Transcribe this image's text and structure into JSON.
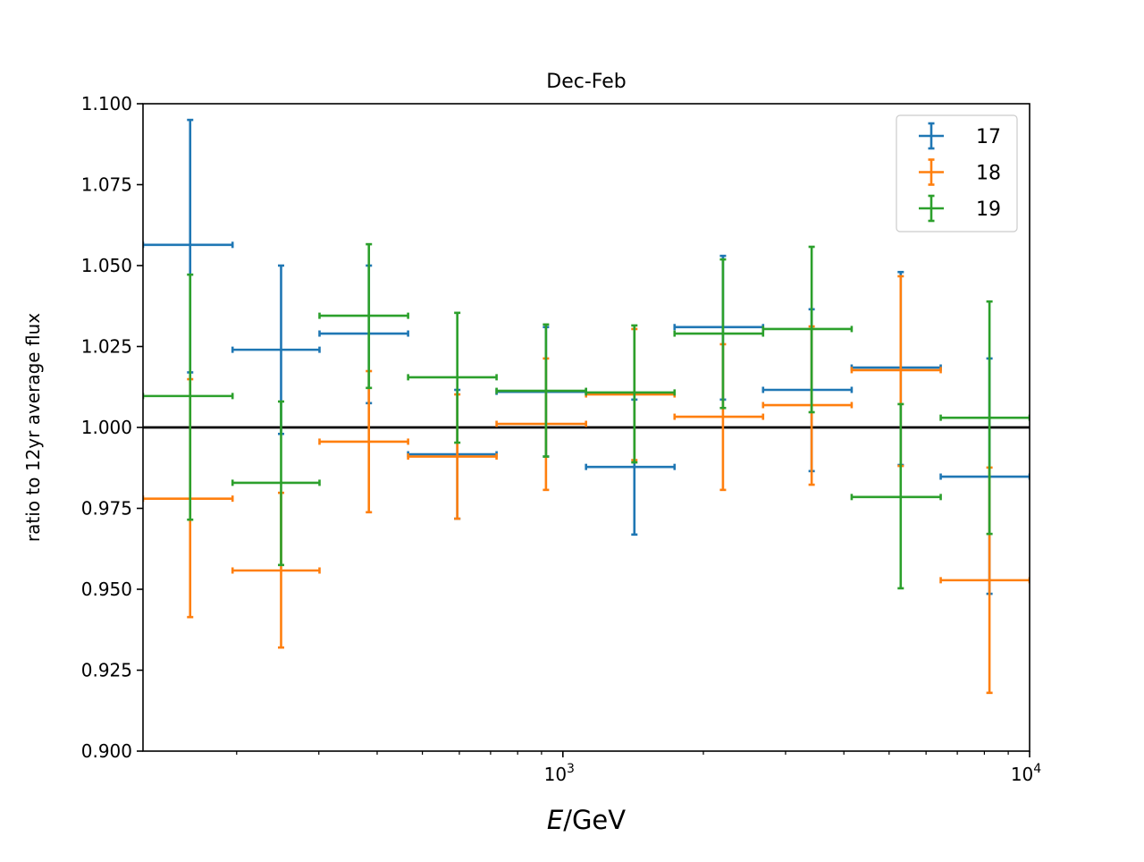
{
  "chart_data": {
    "type": "errorbar",
    "title": "Dec-Feb",
    "xlabel_italic": "E",
    "xlabel_rest": "/GeV",
    "ylabel": "ratio to 12yr average flux",
    "xscale": "log",
    "xlim": [
      126,
      10000
    ],
    "ylim": [
      0.9,
      1.1
    ],
    "grid": false,
    "legend_position": "top-right",
    "reference_line": 1.0,
    "yticks": [
      0.9,
      0.925,
      0.95,
      0.975,
      1.0,
      1.025,
      1.05,
      1.075,
      1.1
    ],
    "ytick_labels": [
      "0.900",
      "0.925",
      "0.950",
      "0.975",
      "1.000",
      "1.025",
      "1.050",
      "1.075",
      "1.100"
    ],
    "xticks": [
      1000,
      10000
    ],
    "xtick_labels": [
      {
        "base": "10",
        "exp": "3"
      },
      {
        "base": "10",
        "exp": "4"
      }
    ],
    "x": [
      159,
      249,
      384,
      594,
      920,
      1423,
      2203,
      3412,
      5295,
      8204
    ],
    "x_low": [
      126,
      196,
      301,
      466,
      721,
      1121,
      1735,
      2685,
      4157,
      6450
    ],
    "x_high": [
      196,
      301,
      466,
      721,
      1121,
      1735,
      2685,
      4157,
      6450,
      10000
    ],
    "series": [
      {
        "name": "17",
        "color": "#1f77b4",
        "y": [
          1.0564,
          1.024,
          1.029,
          0.9917,
          1.011,
          0.9878,
          1.031,
          1.0116,
          1.0185,
          0.9848
        ],
        "y_low": [
          1.017,
          0.998,
          1.0075,
          0.9718,
          0.991,
          0.9669,
          1.0086,
          0.9865,
          0.9884,
          0.9486
        ],
        "y_high": [
          1.095,
          1.05,
          1.05,
          1.0116,
          1.031,
          1.0086,
          1.053,
          1.0365,
          1.048,
          1.0213
        ]
      },
      {
        "name": "18",
        "color": "#ff7f0e",
        "y": [
          0.978,
          0.9558,
          0.9956,
          0.991,
          1.0011,
          1.0102,
          1.0033,
          1.0069,
          1.0177,
          0.9528
        ],
        "y_low": [
          0.9414,
          0.932,
          0.9738,
          0.9718,
          0.9807,
          0.9899,
          0.9807,
          0.9823,
          0.9881,
          0.918
        ],
        "y_high": [
          1.0149,
          0.9798,
          1.0174,
          1.0102,
          1.0213,
          1.0304,
          1.0257,
          1.0312,
          1.0467,
          0.9876
        ]
      },
      {
        "name": "19",
        "color": "#2ca02c",
        "y": [
          1.0097,
          0.9829,
          1.0345,
          1.0155,
          1.0113,
          1.0108,
          1.029,
          1.0304,
          0.9785,
          1.003
        ],
        "y_low": [
          0.9715,
          0.9575,
          1.0122,
          0.9953,
          0.991,
          0.9892,
          1.006,
          1.0047,
          0.9503,
          0.9671
        ],
        "y_high": [
          1.0472,
          1.008,
          1.0566,
          1.0354,
          1.0318,
          1.0315,
          1.0519,
          1.0558,
          1.0072,
          1.0389
        ]
      }
    ]
  }
}
